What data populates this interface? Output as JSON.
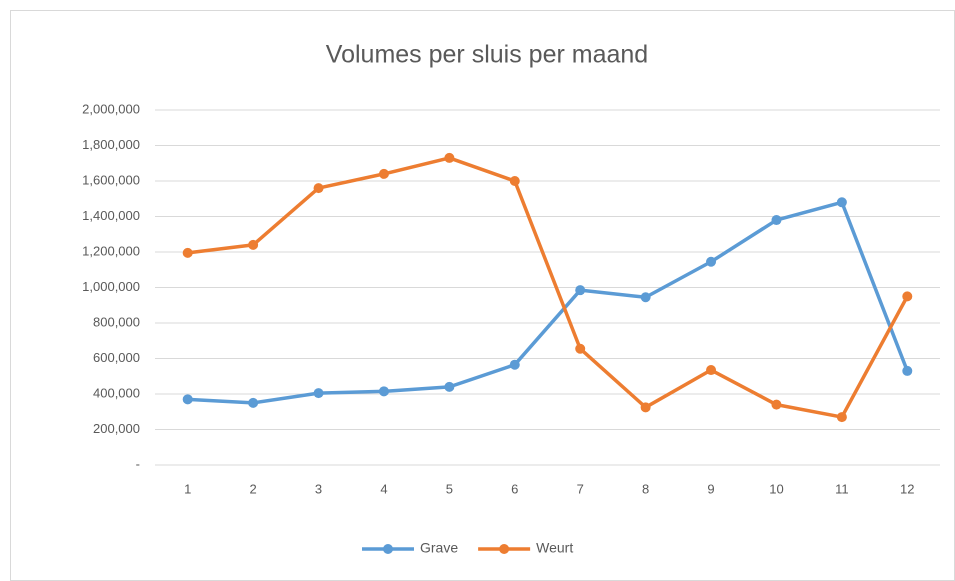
{
  "chart_data": {
    "type": "line",
    "title": "Volumes per sluis per maand",
    "categories": [
      "1",
      "2",
      "3",
      "4",
      "5",
      "6",
      "7",
      "8",
      "9",
      "10",
      "11",
      "12"
    ],
    "series": [
      {
        "name": "Grave",
        "color": "#5b9bd5",
        "values": [
          370000,
          350000,
          405000,
          415000,
          440000,
          565000,
          985000,
          945000,
          1145000,
          1380000,
          1480000,
          530000
        ]
      },
      {
        "name": "Weurt",
        "color": "#ed7d31",
        "values": [
          1195000,
          1240000,
          1560000,
          1640000,
          1730000,
          1600000,
          655000,
          325000,
          535000,
          340000,
          270000,
          950000
        ]
      }
    ],
    "ylim": [
      0,
      2000000
    ],
    "yticks": [
      {
        "value": 0,
        "label": "-"
      },
      {
        "value": 200000,
        "label": "200,000"
      },
      {
        "value": 400000,
        "label": "400,000"
      },
      {
        "value": 600000,
        "label": "600,000"
      },
      {
        "value": 800000,
        "label": "800,000"
      },
      {
        "value": 1000000,
        "label": "1,000,000"
      },
      {
        "value": 1200000,
        "label": "1,200,000"
      },
      {
        "value": 1400000,
        "label": "1,400,000"
      },
      {
        "value": 1600000,
        "label": "1,600,000"
      },
      {
        "value": 1800000,
        "label": "1,800,000"
      },
      {
        "value": 2000000,
        "label": "2,000,000"
      }
    ],
    "grid": true,
    "legend": "bottom"
  }
}
